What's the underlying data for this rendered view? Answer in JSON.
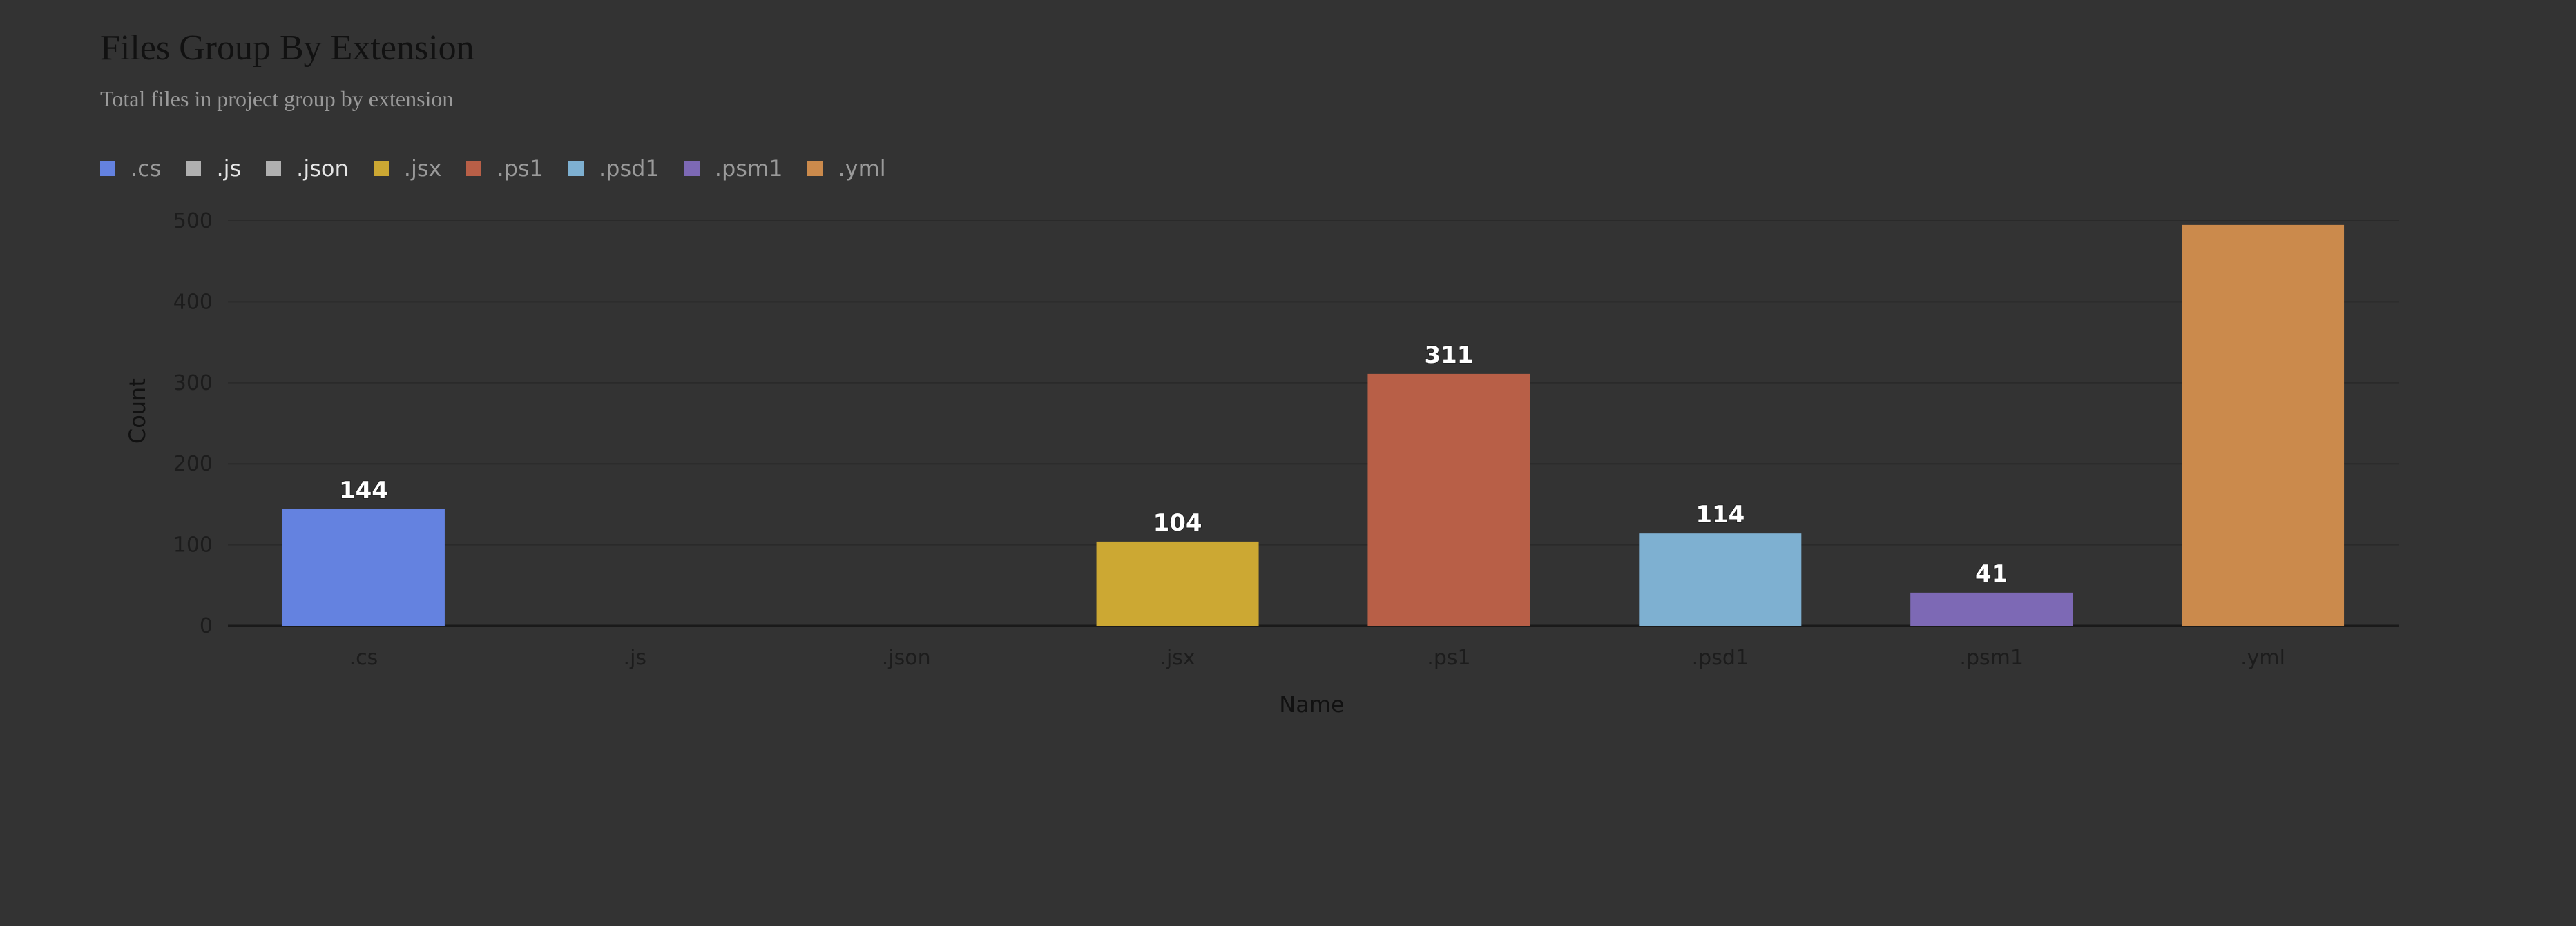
{
  "header": {
    "title": "Files Group By Extension",
    "subtitle": "Total files in project group by extension"
  },
  "colors": {
    "background": "#333333",
    "grid": "#2a2a2a",
    "axis": "#1a1a1a"
  },
  "chart_data": {
    "type": "bar",
    "title": "Files Group By Extension",
    "subtitle": "Total files in project group by extension",
    "xlabel": "Name",
    "ylabel": "Count",
    "categories": [
      ".cs",
      ".js",
      ".json",
      ".jsx",
      ".ps1",
      ".psd1",
      ".psm1",
      ".yml"
    ],
    "values": [
      144,
      0,
      0,
      104,
      311,
      114,
      41,
      495
    ],
    "data_labels": [
      "144",
      "",
      "",
      "104",
      "311",
      "114",
      "41",
      ""
    ],
    "colors": [
      "#6482e0",
      "#b0b0b0",
      "#b0b0b0",
      "#cca833",
      "#b85f47",
      "#7eb0d1",
      "#7d69b5",
      "#cb8a4c"
    ],
    "ylim": [
      0,
      500
    ],
    "yticks": [
      0,
      100,
      200,
      300,
      400,
      500
    ],
    "grid": true,
    "legend_position": "top-left",
    "legend": [
      {
        "label": ".cs",
        "color": "#6482e0",
        "emphasized": false
      },
      {
        "label": ".js",
        "color": "#b0b0b0",
        "emphasized": true
      },
      {
        "label": ".json",
        "color": "#b0b0b0",
        "emphasized": true
      },
      {
        "label": ".jsx",
        "color": "#cca833",
        "emphasized": false
      },
      {
        "label": ".ps1",
        "color": "#b85f47",
        "emphasized": false
      },
      {
        "label": ".psd1",
        "color": "#7eb0d1",
        "emphasized": false
      },
      {
        "label": ".psm1",
        "color": "#7d69b5",
        "emphasized": false
      },
      {
        "label": ".yml",
        "color": "#cb8a4c",
        "emphasized": false
      }
    ]
  }
}
